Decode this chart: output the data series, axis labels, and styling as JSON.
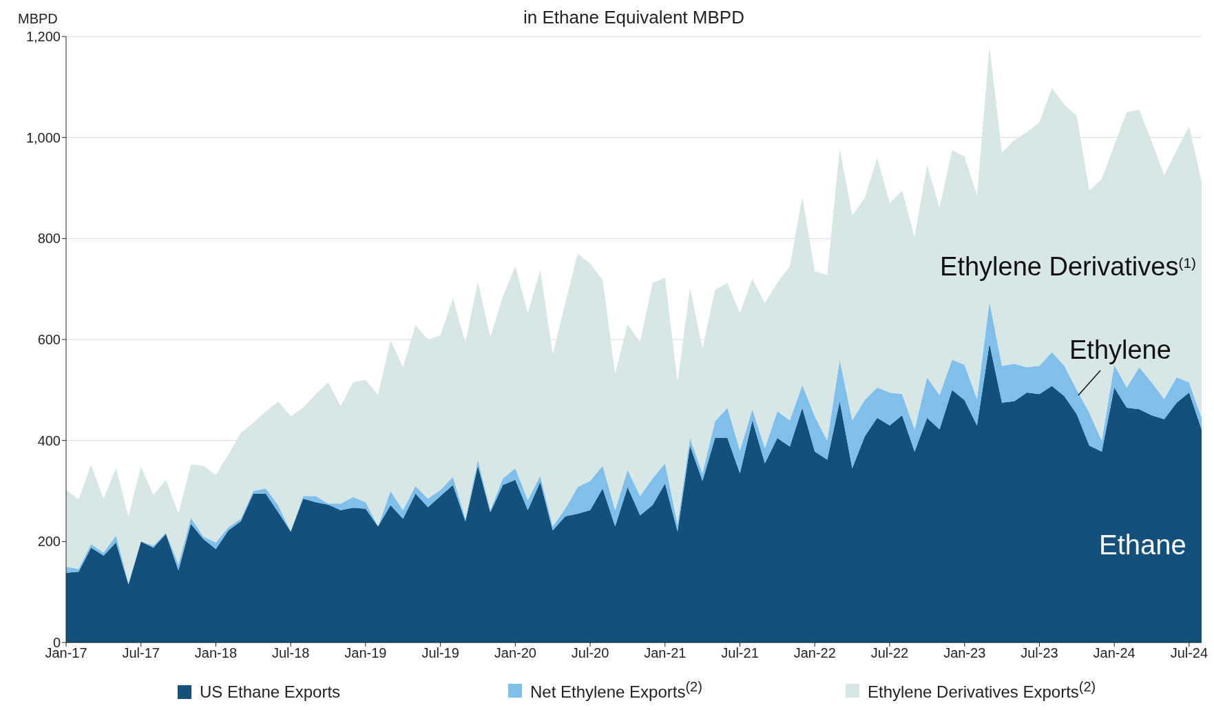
{
  "chart_data": {
    "type": "area",
    "stacked": true,
    "title": "in Ethane Equivalent MBPD",
    "ylabel": "MBPD",
    "categories": [
      "Jan-17",
      null,
      null,
      null,
      null,
      null,
      "Jul-17",
      null,
      null,
      null,
      null,
      null,
      "Jan-18",
      null,
      null,
      null,
      null,
      null,
      "Jul-18",
      null,
      null,
      null,
      null,
      null,
      "Jan-19",
      null,
      null,
      null,
      null,
      null,
      "Jul-19",
      null,
      null,
      null,
      null,
      null,
      "Jan-20",
      null,
      null,
      null,
      null,
      null,
      "Jul-20",
      null,
      null,
      null,
      null,
      null,
      "Jan-21",
      null,
      null,
      null,
      null,
      null,
      "Jul-21",
      null,
      null,
      null,
      null,
      null,
      "Jan-22",
      null,
      null,
      null,
      null,
      null,
      "Jul-22",
      null,
      null,
      null,
      null,
      null,
      "Jan-23",
      null,
      null,
      null,
      null,
      null,
      "Jul-23",
      null,
      null,
      null,
      null,
      null,
      "Jan-24",
      null,
      null,
      null,
      null,
      null,
      "Jul-24",
      null
    ],
    "series": [
      {
        "name": "US Ethane Exports",
        "color": "#13507b",
        "values": [
          138,
          140,
          188,
          172,
          198,
          115,
          200,
          188,
          215,
          143,
          235,
          205,
          185,
          222,
          240,
          295,
          295,
          258,
          220,
          285,
          278,
          273,
          262,
          267,
          265,
          230,
          272,
          245,
          295,
          268,
          290,
          312,
          240,
          350,
          258,
          312,
          322,
          262,
          318,
          222,
          250,
          255,
          262,
          305,
          230,
          308,
          252,
          272,
          315,
          220,
          390,
          320,
          405,
          405,
          335,
          440,
          355,
          405,
          388,
          465,
          378,
          362,
          478,
          345,
          408,
          445,
          430,
          450,
          378,
          445,
          422,
          500,
          480,
          430,
          592,
          475,
          478,
          495,
          492,
          508,
          488,
          452,
          390,
          378,
          505,
          465,
          462,
          450,
          442,
          475,
          495,
          422
        ]
      },
      {
        "name": "Net Ethylene Exports$^{(2)}$",
        "color": "#7fbfea",
        "values": [
          12,
          6,
          7,
          6,
          14,
          3,
          0,
          4,
          3,
          12,
          12,
          5,
          13,
          6,
          5,
          5,
          10,
          14,
          0,
          5,
          12,
          2,
          13,
          21,
          13,
          0,
          28,
          17,
          15,
          17,
          12,
          16,
          5,
          12,
          4,
          13,
          23,
          20,
          12,
          8,
          15,
          53,
          58,
          45,
          32,
          34,
          38,
          53,
          40,
          15,
          15,
          15,
          33,
          60,
          45,
          22,
          30,
          53,
          52,
          45,
          70,
          38,
          82,
          95,
          72,
          60,
          65,
          42,
          44,
          80,
          68,
          60,
          70,
          52,
          83,
          73,
          74,
          50,
          56,
          67,
          60,
          48,
          65,
          22,
          45,
          40,
          83,
          65,
          40,
          50,
          20,
          23
        ]
      },
      {
        "name": "Ethylene Derivatives Exports$^{(2)}$",
        "color": "#d6e7e6",
        "values": [
          152,
          137,
          157,
          107,
          133,
          132,
          148,
          100,
          104,
          100,
          105,
          140,
          134,
          144,
          170,
          135,
          153,
          205,
          228,
          175,
          202,
          240,
          193,
          227,
          242,
          260,
          298,
          283,
          318,
          315,
          306,
          354,
          348,
          353,
          343,
          360,
          400,
          370,
          408,
          340,
          407,
          462,
          430,
          368,
          270,
          288,
          305,
          387,
          367,
          280,
          297,
          247,
          260,
          247,
          272,
          258,
          287,
          254,
          305,
          372,
          287,
          328,
          418,
          405,
          400,
          455,
          375,
          403,
          380,
          420,
          370,
          415,
          412,
          403,
          505,
          422,
          443,
          465,
          482,
          523,
          517,
          542,
          440,
          518,
          435,
          545,
          510,
          477,
          443,
          450,
          507,
          467
        ]
      }
    ],
    "ylim": [
      0,
      1200
    ],
    "yticks": [
      0,
      200,
      400,
      600,
      800,
      {
        "value": 1000,
        "label": "1,000"
      },
      {
        "value": 1200,
        "label": "1,200"
      }
    ],
    "grid": "y",
    "legend": "bottom",
    "annotations": [
      "Ethylene Derivatives$^{(1)}$",
      "Ethylene",
      "Ethane"
    ]
  }
}
